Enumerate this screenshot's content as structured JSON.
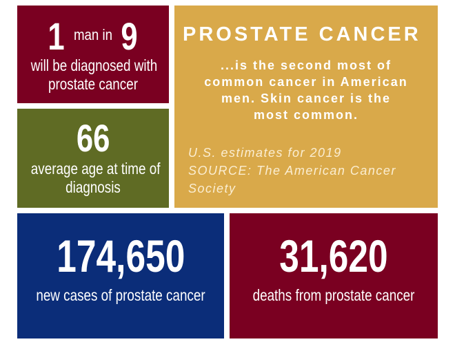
{
  "tiles": {
    "ratio": {
      "number1": "1",
      "middle": "man in",
      "number2": "9",
      "caption_line1": "will be diagnosed with",
      "caption_line2": "prostate cancer"
    },
    "age": {
      "number": "66",
      "caption_line1": "average age at time of",
      "caption_line2": "diagnosis"
    },
    "intro": {
      "title": "PROSTATE CANCER",
      "body_lines": [
        "...is the second most of",
        "common cancer in American",
        "men. Skin cancer is the",
        "most common."
      ],
      "note_line1": "U.S. estimates for 2019",
      "note_line2": "SOURCE: The American Cancer Society"
    },
    "cases": {
      "number": "174,650",
      "caption": "new cases of prostate cancer"
    },
    "deaths": {
      "number": "31,620",
      "caption": "deaths from prostate cancer"
    }
  }
}
